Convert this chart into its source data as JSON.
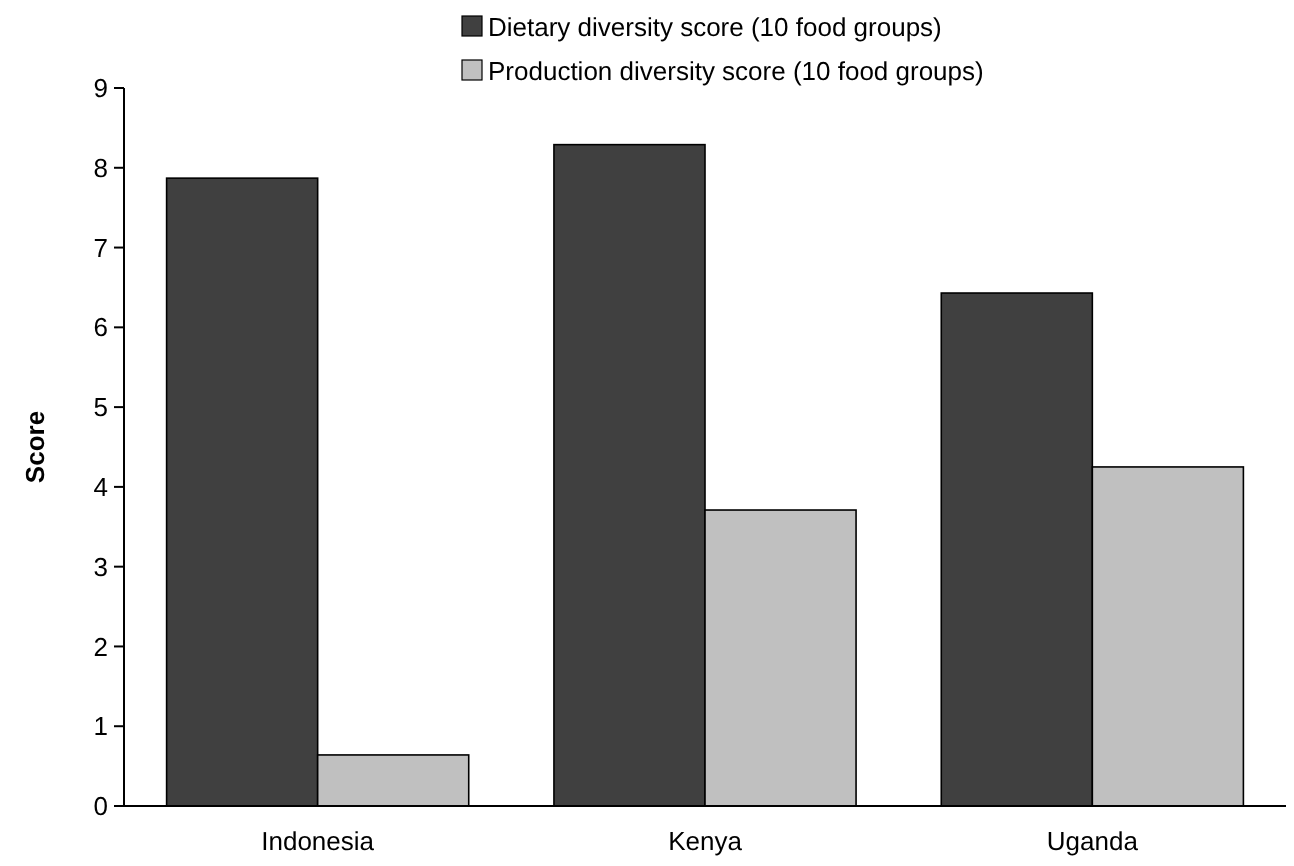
{
  "chart_data": {
    "type": "bar",
    "ylabel": "Score",
    "categories": [
      "Indonesia",
      "Kenya",
      "Uganda"
    ],
    "series": [
      {
        "name": "Dietary diversity score (10 food groups)",
        "color": "#404040",
        "values": [
          7.87,
          8.29,
          6.43
        ]
      },
      {
        "name": "Production diversity score (10 food groups)",
        "color": "#c0c0c0",
        "values": [
          0.64,
          3.71,
          4.25
        ]
      }
    ],
    "ylim": [
      0,
      9
    ],
    "yticks": [
      0,
      1,
      2,
      3,
      4,
      5,
      6,
      7,
      8,
      9
    ],
    "grid": false,
    "legend": "top"
  }
}
